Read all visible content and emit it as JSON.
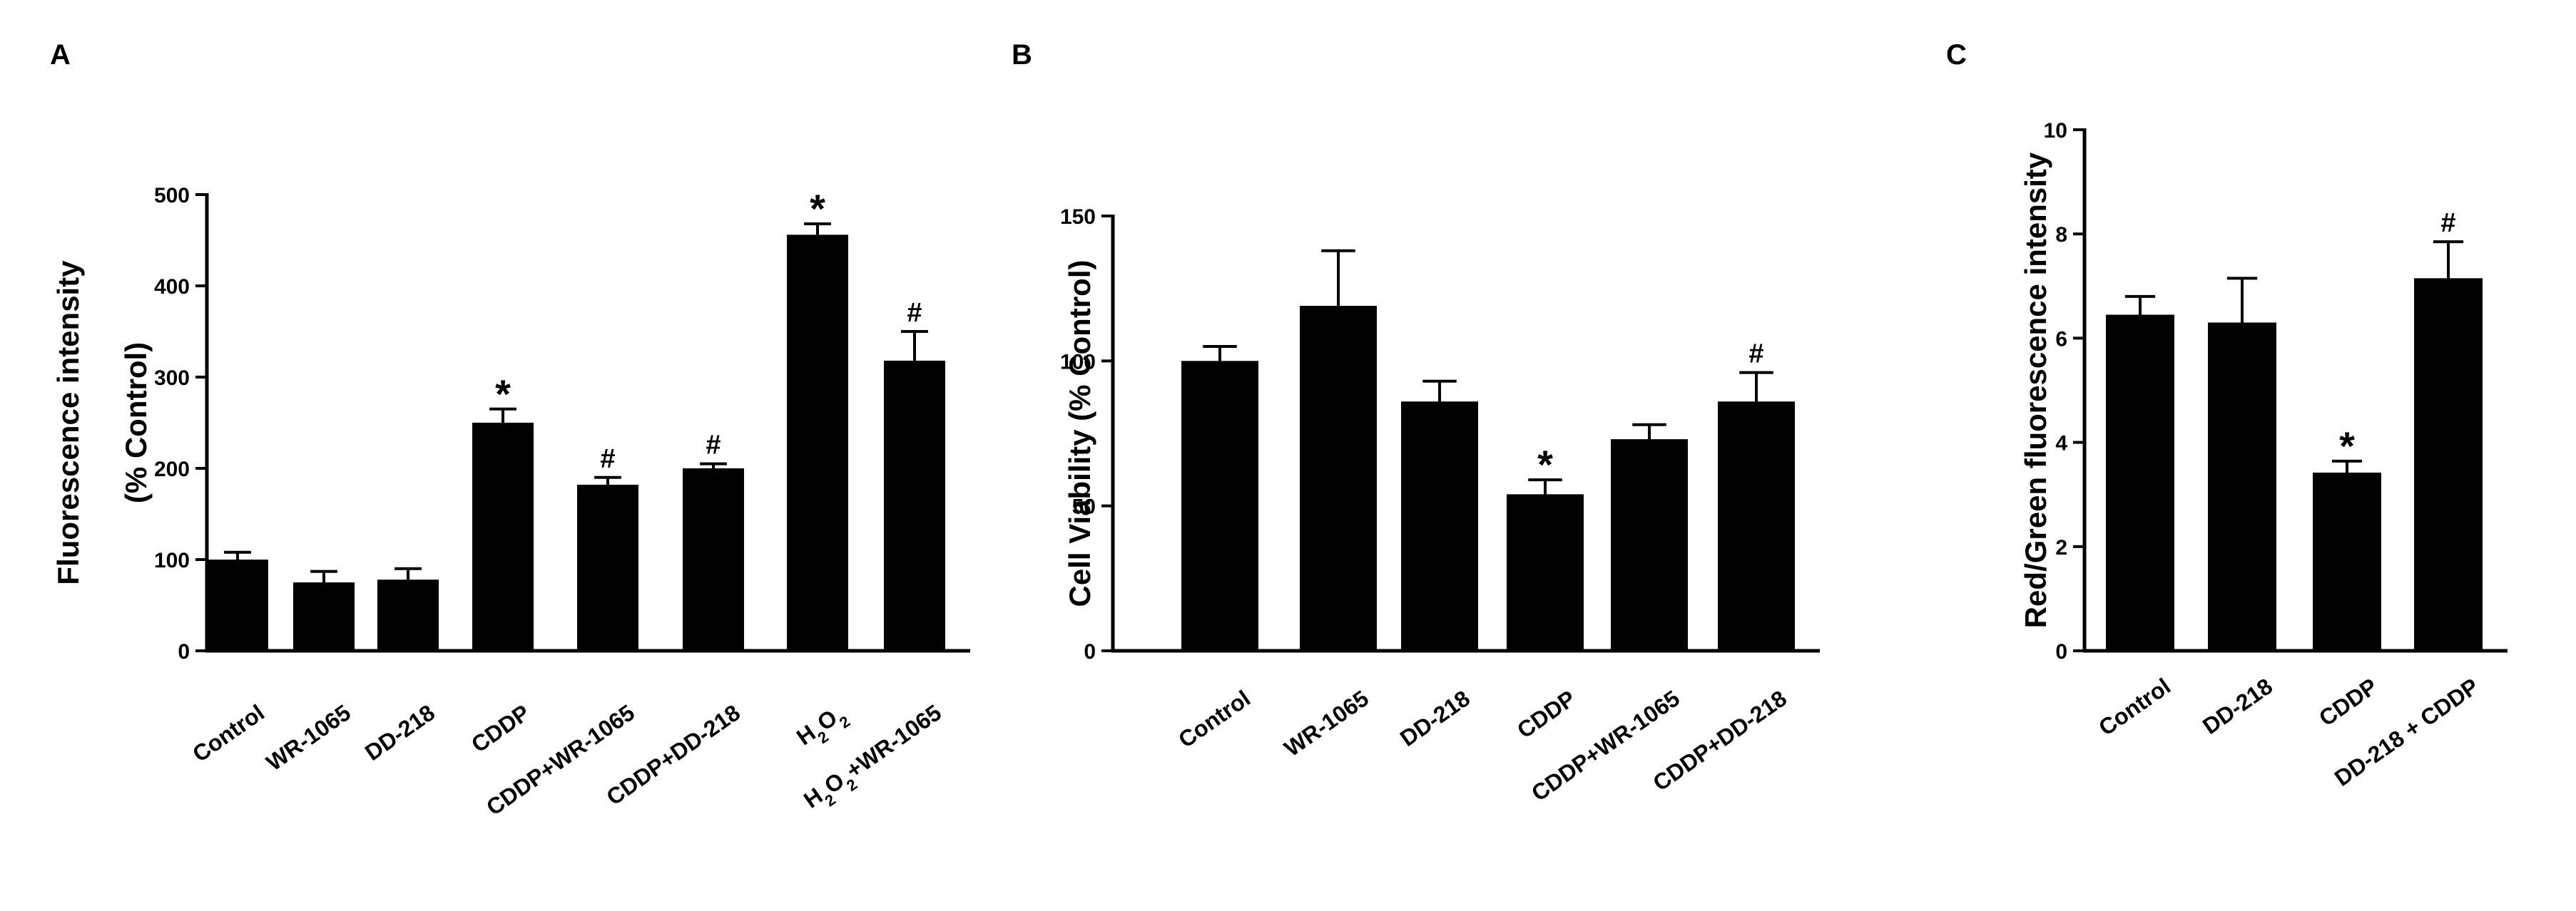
{
  "chart_data": [
    {
      "type": "bar",
      "panel": "A",
      "ylabel": [
        "Fluorescence intensity",
        "(% Control)"
      ],
      "ylim": [
        0,
        500
      ],
      "yticks": [
        0,
        100,
        200,
        300,
        400,
        500
      ],
      "categories": [
        "Control",
        "WR-1065",
        "DD-218",
        "CDDP",
        "CDDP+WR-1065",
        "CDDP+DD-218",
        "H2O2",
        "H2O2+WR-1065"
      ],
      "values": [
        100,
        75,
        78,
        250,
        182,
        200,
        456,
        318
      ],
      "errors": [
        8,
        12,
        12,
        15,
        8,
        5,
        12,
        32
      ],
      "annotations": [
        "",
        "",
        "",
        "*",
        "#",
        "#",
        "*",
        "#"
      ],
      "bar_color": "#000000"
    },
    {
      "type": "bar",
      "panel": "B",
      "ylabel": [
        "Cell Viability (% Control)"
      ],
      "ylim": [
        0,
        150
      ],
      "yticks": [
        0,
        50,
        100,
        150
      ],
      "categories": [
        "Control",
        "WR-1065",
        "DD-218",
        "CDDP",
        "CDDP+WR-1065",
        "CDDP+DD-218"
      ],
      "values": [
        100,
        119,
        86,
        54,
        73,
        86
      ],
      "errors": [
        5,
        19,
        7,
        5,
        5,
        10
      ],
      "annotations": [
        "",
        "",
        "",
        "*",
        "",
        "#"
      ],
      "bar_color": "#000000"
    },
    {
      "type": "bar",
      "panel": "C",
      "ylabel": [
        "Red/Green fluorescence intensity"
      ],
      "ylim": [
        0,
        10
      ],
      "yticks": [
        0,
        2,
        4,
        6,
        8,
        10
      ],
      "categories": [
        "Control",
        "DD-218",
        "CDDP",
        "DD-218 + CDDP"
      ],
      "values": [
        6.45,
        6.3,
        3.42,
        7.15
      ],
      "errors": [
        0.35,
        0.85,
        0.22,
        0.7
      ],
      "annotations": [
        "",
        "",
        "*",
        "#"
      ],
      "bar_color": "#000000"
    }
  ]
}
